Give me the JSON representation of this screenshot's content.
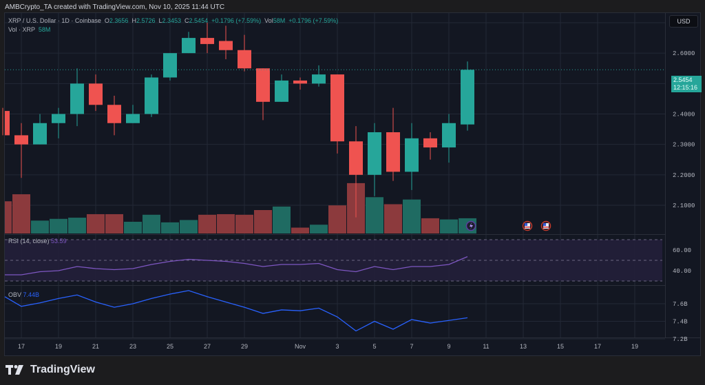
{
  "credit": "AMBCrypto_TA created with TradingView.com, Nov 10, 2025 11:44 UTC",
  "header": {
    "symbol": "XRP / U.S. Dollar · 1D · Coinbase",
    "ohlc": {
      "O": "2.3656",
      "H": "2.5726",
      "L": "2.3453",
      "C": "2.5454"
    },
    "change": "+0.1796 (+7.59%)",
    "vol_label": "Vol",
    "vol_value": "58M",
    "vol_change": "+0.1796 (+7.59%)",
    "vol_line_label": "Vol · XRP",
    "vol_line_value": "58M"
  },
  "currency": "USD",
  "last_price": {
    "value": "2.5454",
    "countdown": "12:15:16"
  },
  "rsi": {
    "label": "RSI (14, close)",
    "value": "53.59",
    "ticks": [
      "60.00",
      "40.00"
    ]
  },
  "obv": {
    "label": "OBV",
    "value": "7.44B",
    "ticks": [
      "7.6B",
      "7.4B",
      "7.2B"
    ]
  },
  "brand": "TradingView",
  "colors": {
    "up": "#26a69a",
    "down": "#ef5350",
    "up_vol": "#1f6b62",
    "down_vol": "#8c3a3d",
    "rsi": "#7e57c2",
    "obv": "#2962ff",
    "bg": "#131722"
  },
  "chart_data": {
    "type": "candlestick",
    "title": "XRP / U.S. Dollar · 1D · Coinbase",
    "ylabel": "USD",
    "ylim": [
      2.02,
      2.72
    ],
    "y_ticks": [
      "2.7000",
      "2.6000",
      "2.5000",
      "2.4000",
      "2.3000",
      "2.2000",
      "2.1000"
    ],
    "x_ticks": [
      "17",
      "19",
      "21",
      "23",
      "25",
      "27",
      "29",
      "Nov",
      "3",
      "5",
      "7",
      "9",
      "11",
      "13",
      "15",
      "17",
      "19"
    ],
    "grid": true,
    "candles": [
      {
        "date": "Oct 16",
        "o": 2.41,
        "h": 2.42,
        "l": 2.33,
        "c": 2.33
      },
      {
        "date": "Oct 17",
        "o": 2.33,
        "h": 2.37,
        "l": 2.19,
        "c": 2.3
      },
      {
        "date": "Oct 18",
        "o": 2.3,
        "h": 2.4,
        "l": 2.3,
        "c": 2.37
      },
      {
        "date": "Oct 19",
        "o": 2.37,
        "h": 2.42,
        "l": 2.32,
        "c": 2.4
      },
      {
        "date": "Oct 20",
        "o": 2.4,
        "h": 2.55,
        "l": 2.36,
        "c": 2.5
      },
      {
        "date": "Oct 21",
        "o": 2.5,
        "h": 2.53,
        "l": 2.41,
        "c": 2.43
      },
      {
        "date": "Oct 22",
        "o": 2.43,
        "h": 2.46,
        "l": 2.33,
        "c": 2.37
      },
      {
        "date": "Oct 23",
        "o": 2.37,
        "h": 2.43,
        "l": 2.37,
        "c": 2.4
      },
      {
        "date": "Oct 24",
        "o": 2.4,
        "h": 2.53,
        "l": 2.39,
        "c": 2.52
      },
      {
        "date": "Oct 25",
        "o": 2.52,
        "h": 2.6,
        "l": 2.51,
        "c": 2.6
      },
      {
        "date": "Oct 26",
        "o": 2.6,
        "h": 2.67,
        "l": 2.6,
        "c": 2.65
      },
      {
        "date": "Oct 27",
        "o": 2.65,
        "h": 2.7,
        "l": 2.6,
        "c": 2.63
      },
      {
        "date": "Oct 28",
        "o": 2.64,
        "h": 2.69,
        "l": 2.58,
        "c": 2.61
      },
      {
        "date": "Oct 29",
        "o": 2.61,
        "h": 2.66,
        "l": 2.54,
        "c": 2.55
      },
      {
        "date": "Oct 30",
        "o": 2.55,
        "h": 2.55,
        "l": 2.38,
        "c": 2.44
      },
      {
        "date": "Oct 31",
        "o": 2.44,
        "h": 2.53,
        "l": 2.44,
        "c": 2.51
      },
      {
        "date": "Nov 1",
        "o": 2.51,
        "h": 2.52,
        "l": 2.48,
        "c": 2.5
      },
      {
        "date": "Nov 2",
        "o": 2.5,
        "h": 2.56,
        "l": 2.49,
        "c": 2.53
      },
      {
        "date": "Nov 3",
        "o": 2.53,
        "h": 2.53,
        "l": 2.27,
        "c": 2.31
      },
      {
        "date": "Nov 4",
        "o": 2.31,
        "h": 2.36,
        "l": 2.06,
        "c": 2.2
      },
      {
        "date": "Nov 5",
        "o": 2.2,
        "h": 2.37,
        "l": 2.13,
        "c": 2.34
      },
      {
        "date": "Nov 6",
        "o": 2.34,
        "h": 2.42,
        "l": 2.18,
        "c": 2.21
      },
      {
        "date": "Nov 7",
        "o": 2.21,
        "h": 2.37,
        "l": 2.15,
        "c": 2.32
      },
      {
        "date": "Nov 8",
        "o": 2.32,
        "h": 2.34,
        "l": 2.25,
        "c": 2.29
      },
      {
        "date": "Nov 9",
        "o": 2.29,
        "h": 2.4,
        "l": 2.24,
        "c": 2.37
      },
      {
        "date": "Nov 10",
        "o": 2.3656,
        "h": 2.5726,
        "l": 2.3453,
        "c": 2.5454
      }
    ],
    "volume_rel": [
      0.55,
      0.67,
      0.22,
      0.25,
      0.27,
      0.33,
      0.33,
      0.2,
      0.32,
      0.19,
      0.23,
      0.32,
      0.33,
      0.32,
      0.4,
      0.46,
      0.1,
      0.15,
      0.48,
      0.86,
      0.62,
      0.5,
      0.58,
      0.26,
      0.24,
      0.26
    ],
    "rsi_values": [
      36,
      36,
      39,
      40,
      44,
      42,
      41,
      42,
      46,
      49,
      51,
      50,
      49,
      47,
      44,
      46,
      46,
      47,
      41,
      39,
      44,
      41,
      44,
      44,
      46,
      53.59
    ],
    "rsi_ylim": [
      30,
      70
    ],
    "obv_values": [
      7.68,
      7.57,
      7.61,
      7.66,
      7.7,
      7.62,
      7.56,
      7.6,
      7.66,
      7.71,
      7.75,
      7.68,
      7.62,
      7.56,
      7.49,
      7.53,
      7.52,
      7.55,
      7.45,
      7.29,
      7.4,
      7.31,
      7.42,
      7.38,
      7.41,
      7.44
    ],
    "obv_ylim": [
      7.15,
      7.8
    ]
  }
}
